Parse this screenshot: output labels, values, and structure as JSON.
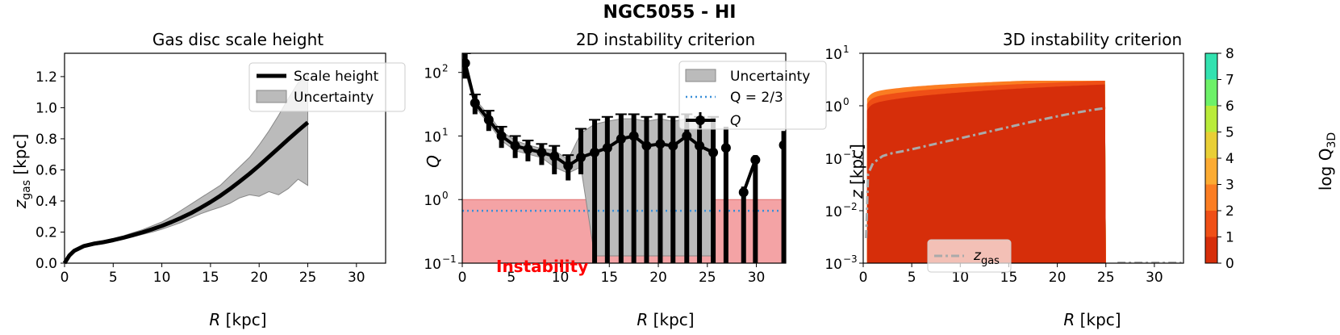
{
  "figure": {
    "title": "NGC5055 - HI"
  },
  "chart_data": [
    {
      "type": "line",
      "title": "Gas disc scale height",
      "xlabel": "R [kpc]",
      "ylabel_main": "z",
      "ylabel_sub": "gas",
      "ylabel_unit": " [kpc]",
      "xlim": [
        0,
        33
      ],
      "ylim": [
        0,
        1.35
      ],
      "xticks": [
        0,
        5,
        10,
        15,
        20,
        25,
        30
      ],
      "yticks": [
        0.0,
        0.2,
        0.4,
        0.6,
        0.8,
        1.0,
        1.2
      ],
      "ytick_labels": [
        "0.0",
        "0.2",
        "0.4",
        "0.6",
        "0.8",
        "1.0",
        "1.2"
      ],
      "legend": {
        "position": "top-right",
        "entries": [
          "Scale height",
          "Uncertainty"
        ]
      },
      "series": [
        {
          "name": "Scale height",
          "x": [
            0,
            0.5,
            1,
            2,
            3,
            4,
            5,
            6,
            7,
            8,
            9,
            10,
            11,
            12,
            13,
            14,
            15,
            16,
            17,
            18,
            19,
            20,
            21,
            22,
            23,
            24,
            25
          ],
          "y": [
            0.0,
            0.05,
            0.08,
            0.11,
            0.125,
            0.135,
            0.148,
            0.163,
            0.18,
            0.198,
            0.218,
            0.24,
            0.265,
            0.292,
            0.322,
            0.356,
            0.393,
            0.433,
            0.477,
            0.525,
            0.575,
            0.628,
            0.684,
            0.74,
            0.797,
            0.852,
            0.905
          ]
        }
      ],
      "uncertainty": {
        "x": [
          0,
          0.5,
          1,
          2,
          3,
          4,
          5,
          6,
          7,
          8,
          9,
          10,
          11,
          12,
          13,
          14,
          15,
          16,
          17,
          18,
          19,
          20,
          21,
          22,
          23,
          24,
          25
        ],
        "upper": [
          0.01,
          0.06,
          0.09,
          0.12,
          0.135,
          0.145,
          0.16,
          0.175,
          0.195,
          0.215,
          0.24,
          0.265,
          0.3,
          0.34,
          0.38,
          0.42,
          0.46,
          0.5,
          0.56,
          0.62,
          0.68,
          0.76,
          0.85,
          0.95,
          1.06,
          1.16,
          1.21
        ],
        "lower": [
          0.0,
          0.04,
          0.07,
          0.1,
          0.115,
          0.125,
          0.138,
          0.152,
          0.168,
          0.185,
          0.2,
          0.218,
          0.24,
          0.262,
          0.29,
          0.318,
          0.34,
          0.36,
          0.385,
          0.42,
          0.44,
          0.43,
          0.46,
          0.44,
          0.48,
          0.54,
          0.5
        ]
      }
    },
    {
      "type": "line",
      "title": "2D instability criterion",
      "xlabel": "R [kpc]",
      "ylabel": "Q",
      "yscale": "log",
      "xlim": [
        0,
        33
      ],
      "ylim": [
        0.1,
        200
      ],
      "xticks": [
        0,
        5,
        10,
        15,
        20,
        25,
        30
      ],
      "ytick_values": [
        0.1,
        1,
        10,
        100
      ],
      "ytick_labels": [
        "10",
        "10",
        "10",
        "10"
      ],
      "ytick_exponents": [
        "−1",
        "0",
        "1",
        "2"
      ],
      "legend": {
        "position": "top-right",
        "entries": [
          "Uncertainty",
          "Q = 2/3",
          "Q"
        ]
      },
      "annotation": "Instability",
      "threshold_band": [
        0.1,
        1.0
      ],
      "reference_line": 0.6667,
      "series": [
        {
          "name": "Q",
          "segments": [
            {
              "x": [
                0.3,
                1.3,
                2.7,
                4.0,
                5.4,
                6.7,
                8.1,
                9.4,
                10.8,
                12.1,
                13.5,
                14.8,
                16.2,
                17.5,
                18.8,
                20.2,
                21.5,
                22.9,
                24.2,
                25.6
              ],
              "y": [
                140,
                33,
                18,
                10,
                7,
                6.2,
                5.5,
                4.8,
                3.4,
                4.6,
                5.5,
                6.5,
                9,
                10,
                7,
                7.5,
                7,
                10,
                7,
                5.5
              ]
            },
            {
              "x": [
                26.9
              ],
              "y": [
                6.5
              ]
            },
            {
              "x": [
                28.7,
                29.9
              ],
              "y": [
                1.3,
                4.2
              ]
            },
            {
              "x": [
                32.8
              ],
              "y": [
                7.2
              ]
            }
          ],
          "errors_lower": [
            80,
            22,
            12,
            6.5,
            4.5,
            4,
            3.5,
            2.5,
            2,
            2.5,
            0.1,
            0.1,
            0.1,
            0.1,
            0.1,
            0.1,
            0.1,
            0.1,
            0.1,
            0.1
          ],
          "errors_upper": [
            200,
            45,
            25,
            14,
            10,
            8.5,
            7.5,
            7,
            5,
            13,
            18,
            20,
            22,
            22,
            20,
            22,
            20,
            22,
            20,
            20
          ]
        }
      ]
    },
    {
      "type": "heatmap",
      "title": "3D instability criterion",
      "xlabel": "R [kpc]",
      "ylabel": "z [kpc]",
      "yscale": "log",
      "xlim": [
        0,
        33
      ],
      "ylim": [
        0.001,
        10
      ],
      "xticks": [
        0,
        5,
        10,
        15,
        20,
        25,
        30
      ],
      "ytick_values": [
        0.001,
        0.01,
        0.1,
        1,
        10
      ],
      "ytick_labels": [
        "10",
        "10",
        "10",
        "10",
        "10"
      ],
      "ytick_exponents": [
        "−3",
        "−2",
        "−1",
        "0",
        "1"
      ],
      "legend": {
        "position": "bottom-left",
        "entries": [
          "z gas"
        ]
      },
      "colorbar": {
        "label": "log Q",
        "label_sub": "3D",
        "ticks": [
          "0",
          "1",
          "2",
          "3",
          "4",
          "5",
          "6",
          "7",
          "8"
        ],
        "colors": [
          "#d62e0a",
          "#ef4f16",
          "#fb7d22",
          "#fcab32",
          "#e9cf36",
          "#b9eb3a",
          "#6df168",
          "#33e2b0",
          "#23b1f0"
        ]
      },
      "zgas": {
        "x": [
          0.3,
          0.5,
          1,
          2,
          3,
          4,
          5,
          6,
          7,
          8,
          9,
          10,
          11,
          12,
          13,
          14,
          15,
          16,
          17,
          18,
          19,
          20,
          21,
          22,
          23,
          24,
          25
        ],
        "y": [
          0.003,
          0.05,
          0.08,
          0.11,
          0.125,
          0.135,
          0.148,
          0.163,
          0.18,
          0.198,
          0.218,
          0.24,
          0.265,
          0.292,
          0.322,
          0.356,
          0.393,
          0.433,
          0.477,
          0.525,
          0.575,
          0.628,
          0.684,
          0.74,
          0.797,
          0.852,
          0.905
        ]
      }
    }
  ]
}
